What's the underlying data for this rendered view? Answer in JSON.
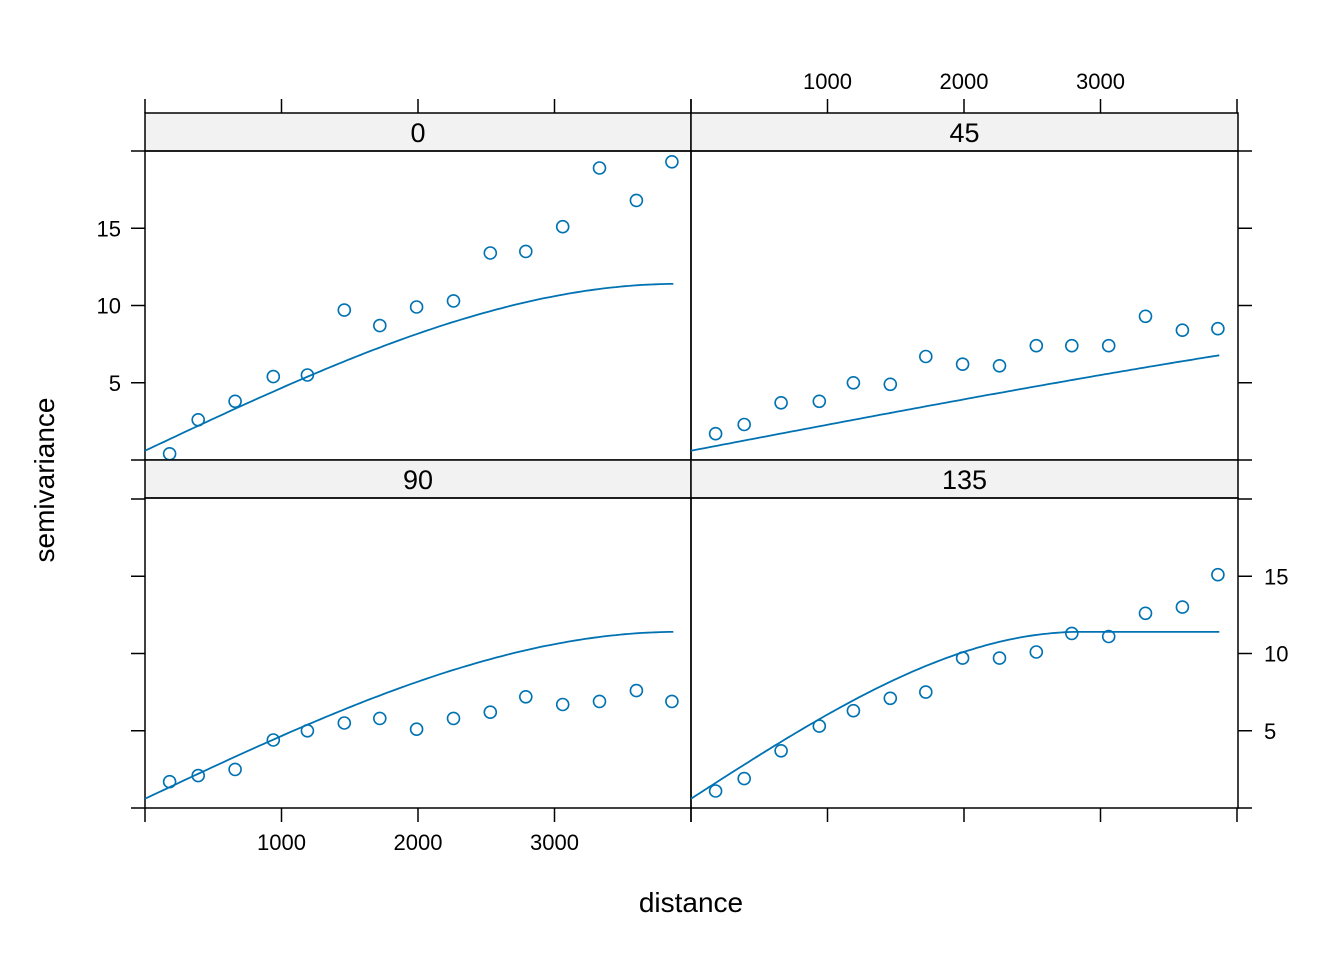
{
  "chart_data": {
    "type": "scatter",
    "xlabel": "distance",
    "ylabel": "semivariance",
    "xlim": [
      0,
      4000
    ],
    "ylim": [
      0,
      20
    ],
    "x_ticks": [
      1000,
      2000,
      3000
    ],
    "x_tick_labels": [
      "1000",
      "2000",
      "3000"
    ],
    "y_ticks": [
      5,
      10,
      15
    ],
    "y_tick_labels": [
      "5",
      "10",
      "15"
    ],
    "colors": {
      "points": "#0072b2",
      "model_line": "#0072b2",
      "strip_background": "#f2f2f2",
      "frame": "#000000"
    },
    "panels": [
      {
        "label": "0",
        "points": [
          [
            180,
            0.4
          ],
          [
            390,
            2.6
          ],
          [
            660,
            3.8
          ],
          [
            940,
            5.4
          ],
          [
            1190,
            5.5
          ],
          [
            1460,
            9.7
          ],
          [
            1720,
            8.7
          ],
          [
            1990,
            9.9
          ],
          [
            2260,
            10.3
          ],
          [
            2530,
            13.4
          ],
          [
            2790,
            13.5
          ],
          [
            3060,
            15.1
          ],
          [
            3330,
            18.9
          ],
          [
            3600,
            16.8
          ],
          [
            3860,
            19.3
          ]
        ],
        "model": {
          "nugget": 0.6,
          "psill": 10.8,
          "range": 3900
        }
      },
      {
        "label": "45",
        "points": [
          [
            180,
            1.7
          ],
          [
            390,
            2.3
          ],
          [
            660,
            3.7
          ],
          [
            940,
            3.8
          ],
          [
            1190,
            5.0
          ],
          [
            1460,
            4.9
          ],
          [
            1720,
            6.7
          ],
          [
            1990,
            6.2
          ],
          [
            2260,
            6.1
          ],
          [
            2530,
            7.4
          ],
          [
            2790,
            7.4
          ],
          [
            3060,
            7.4
          ],
          [
            3330,
            9.3
          ],
          [
            3600,
            8.4
          ],
          [
            3860,
            8.5
          ]
        ],
        "model": {
          "nugget": 0.6,
          "psill": 10.8,
          "range": 9600
        }
      },
      {
        "label": "90",
        "points": [
          [
            180,
            1.7
          ],
          [
            390,
            2.1
          ],
          [
            660,
            2.5
          ],
          [
            940,
            4.4
          ],
          [
            1190,
            5.0
          ],
          [
            1460,
            5.5
          ],
          [
            1720,
            5.8
          ],
          [
            1990,
            5.1
          ],
          [
            2260,
            5.8
          ],
          [
            2530,
            6.2
          ],
          [
            2790,
            7.2
          ],
          [
            3060,
            6.7
          ],
          [
            3330,
            6.9
          ],
          [
            3600,
            7.6
          ],
          [
            3860,
            6.9
          ]
        ],
        "model": {
          "nugget": 0.6,
          "psill": 10.8,
          "range": 3900
        }
      },
      {
        "label": "135",
        "points": [
          [
            180,
            1.1
          ],
          [
            390,
            1.9
          ],
          [
            660,
            3.7
          ],
          [
            940,
            5.3
          ],
          [
            1190,
            6.3
          ],
          [
            1460,
            7.1
          ],
          [
            1720,
            7.5
          ],
          [
            1990,
            9.7
          ],
          [
            2260,
            9.7
          ],
          [
            2530,
            10.1
          ],
          [
            2790,
            11.3
          ],
          [
            3060,
            11.1
          ],
          [
            3330,
            12.6
          ],
          [
            3600,
            13.0
          ],
          [
            3860,
            15.1
          ]
        ],
        "model": {
          "nugget": 0.6,
          "psill": 10.8,
          "range": 2850
        }
      }
    ]
  }
}
